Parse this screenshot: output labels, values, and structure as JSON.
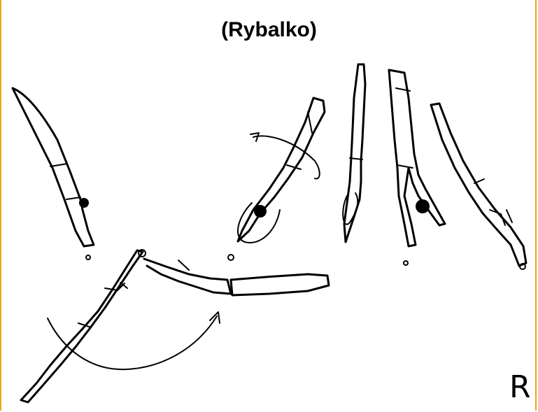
{
  "title": "(Rybalko)",
  "corner_letter": "R",
  "colors": {
    "frame": "#e6a817",
    "ink": "#000000",
    "background": "#ffffff"
  }
}
